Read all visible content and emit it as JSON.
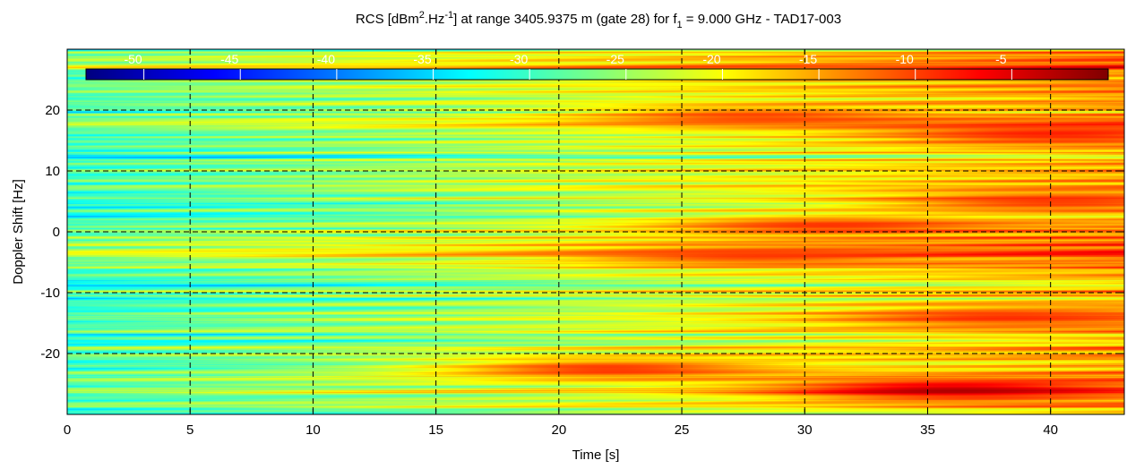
{
  "chart_data": {
    "type": "heatmap",
    "title": {
      "part1": "RCS [dBm",
      "sup1": "2",
      "part2": ".Hz",
      "sup2": "-1",
      "part3": "] at range 3405.9375 m (gate 28) for f",
      "sub1": "1",
      "part4": " = 9.000 GHz - TAD17-003"
    },
    "xlabel": "Time [s]",
    "ylabel": "Doppler Shift [Hz]",
    "xlim": [
      0,
      43
    ],
    "ylim": [
      -30,
      30
    ],
    "x_ticks": [
      0,
      5,
      10,
      15,
      20,
      25,
      30,
      35,
      40
    ],
    "x_tick_labels": [
      "0",
      "5",
      "10",
      "15",
      "20",
      "25",
      "30",
      "35",
      "40"
    ],
    "y_ticks": [
      20,
      10,
      0,
      -10,
      -20
    ],
    "y_tick_labels": [
      "20",
      "10",
      "0",
      "-10",
      "-20"
    ],
    "grid": "dashed",
    "colormap": "jet",
    "color_range": [
      -53,
      0
    ],
    "colorbar": {
      "placement": "top-inside",
      "tick_labels": [
        "-50",
        "-45",
        "-40",
        "-35",
        "-30",
        "-25",
        "-20",
        "-15",
        "-10",
        "-5"
      ],
      "tick_values": [
        -50,
        -45,
        -40,
        -35,
        -30,
        -25,
        -20,
        -15,
        -10,
        -5
      ]
    },
    "hotspots": [
      {
        "time": 36,
        "doppler": -26,
        "level": -1
      },
      {
        "time": 22,
        "doppler": -22.5,
        "level": -7
      },
      {
        "time": 28,
        "doppler": 19,
        "level": -9
      },
      {
        "time": 31,
        "doppler": 1,
        "level": -8
      },
      {
        "time": 28,
        "doppler": -4,
        "level": -9
      },
      {
        "time": 40,
        "doppler": 16,
        "level": -7
      },
      {
        "time": 40,
        "doppler": 5,
        "level": -8
      },
      {
        "time": 38,
        "doppler": -14,
        "level": -8
      }
    ],
    "grid_color": "#000000"
  }
}
